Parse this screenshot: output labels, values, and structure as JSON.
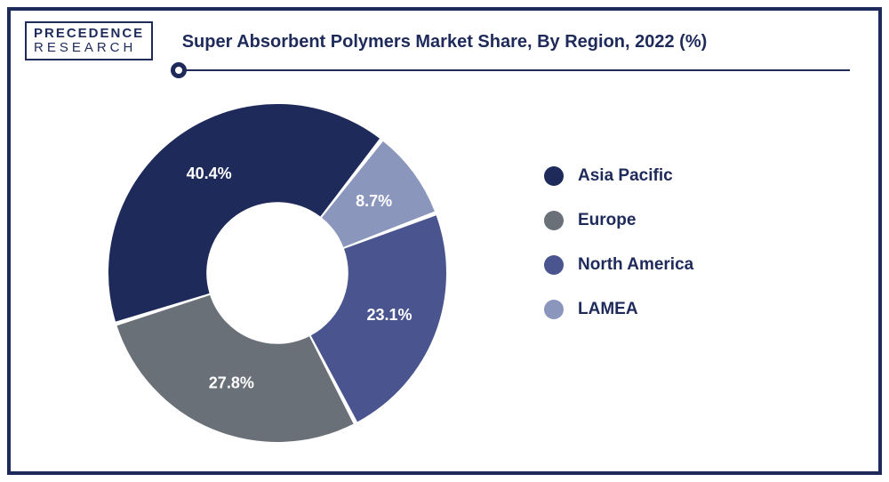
{
  "logo": {
    "line1": "PRECEDENCE",
    "line2": "RESEARCH"
  },
  "title": "Super Absorbent Polymers Market Share, By Region, 2022 (%)",
  "chart": {
    "type": "donut",
    "background_color": "#ffffff",
    "inner_radius_ratio": 0.42,
    "outer_radius": 190,
    "start_angle_deg": 38,
    "gap_deg": 1.5,
    "label_fontsize": 18,
    "label_color": "#ffffff",
    "slices": [
      {
        "name": "LAMEA",
        "value": 8.7,
        "label": "8.7%",
        "color": "#8b96bd"
      },
      {
        "name": "North America",
        "value": 23.1,
        "label": "23.1%",
        "color": "#4a558f"
      },
      {
        "name": "Europe",
        "value": 27.8,
        "label": "27.8%",
        "color": "#6a7078"
      },
      {
        "name": "Asia Pacific",
        "value": 40.4,
        "label": "40.4%",
        "color": "#1e2a5a"
      }
    ]
  },
  "legend": {
    "title_color": "#1e2a5a",
    "fontsize": 19,
    "items": [
      {
        "label": "Asia Pacific",
        "color": "#1e2a5a"
      },
      {
        "label": "Europe",
        "color": "#6a7078"
      },
      {
        "label": "North America",
        "color": "#4a558f"
      },
      {
        "label": "LAMEA",
        "color": "#8b96bd"
      }
    ]
  }
}
